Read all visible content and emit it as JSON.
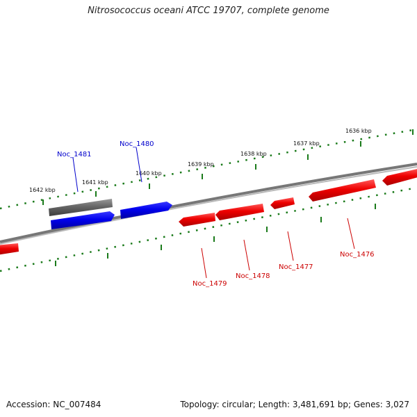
{
  "title": "Nitrosococcus oceani ATCC 19707, complete genome",
  "footer": {
    "accession": "Accession: NC_007484",
    "summary": "Topology: circular; Length: 3,481,691 bp; Genes: 3,027"
  },
  "colors": {
    "backbone": "#777777",
    "ticks": "#1a7a1a",
    "tick_labels": "#111111",
    "forward_gene": "#0000ee",
    "reverse_gene": "#ee0000",
    "gray_feature": "#666666",
    "forward_label": "#0000cc",
    "reverse_label": "#cc0000"
  },
  "scale_labels": [
    "1636 kbp",
    "1637 kbp",
    "1638 kbp",
    "1639 kbp",
    "1640 kbp",
    "1641 kbp",
    "1642 kbp"
  ],
  "gene_labels": {
    "forward": [
      "Noc_1481",
      "Noc_1480"
    ],
    "reverse": [
      "Noc_1479",
      "Noc_1478",
      "Noc_1477",
      "Noc_1476"
    ]
  },
  "legend_none": ""
}
